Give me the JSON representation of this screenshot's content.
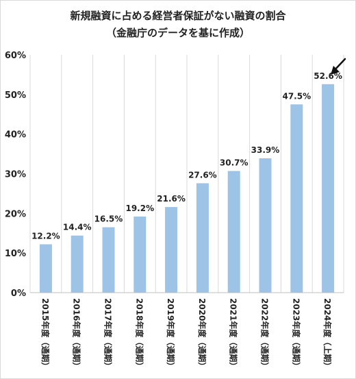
{
  "chart_data": {
    "type": "bar",
    "title": "新規融資に占める経営者保証がない融資の割合",
    "subtitle": "（金融庁のデータを基に作成）",
    "categories": [
      "2015年度（通期）",
      "2016年度（通期）",
      "2017年度（通期）",
      "2018年度（通期）",
      "2019年度（通期）",
      "2020年度（通期）",
      "2021年度（通期）",
      "2022年度（通期）",
      "2023年度（通期）",
      "2024年度（上期）"
    ],
    "values": [
      12.2,
      14.4,
      16.5,
      19.2,
      21.6,
      27.6,
      30.7,
      33.9,
      47.5,
      52.6
    ],
    "data_labels": [
      "12.2%",
      "14.4%",
      "16.5%",
      "19.2%",
      "21.6%",
      "27.6%",
      "30.7%",
      "33.9%",
      "47.5%",
      "52.6%"
    ],
    "ylim": [
      0,
      60
    ],
    "y_ticks": [
      0,
      10,
      20,
      30,
      40,
      50,
      60
    ],
    "y_tick_labels": [
      "0%",
      "10%",
      "20%",
      "30%",
      "40%",
      "50%",
      "60%"
    ],
    "xlabel": "",
    "ylabel": "",
    "grid": "vertical",
    "legend": "none",
    "bar_color": "#9dc3e6",
    "annotation": "arrow pointing to the 2024 bar"
  }
}
